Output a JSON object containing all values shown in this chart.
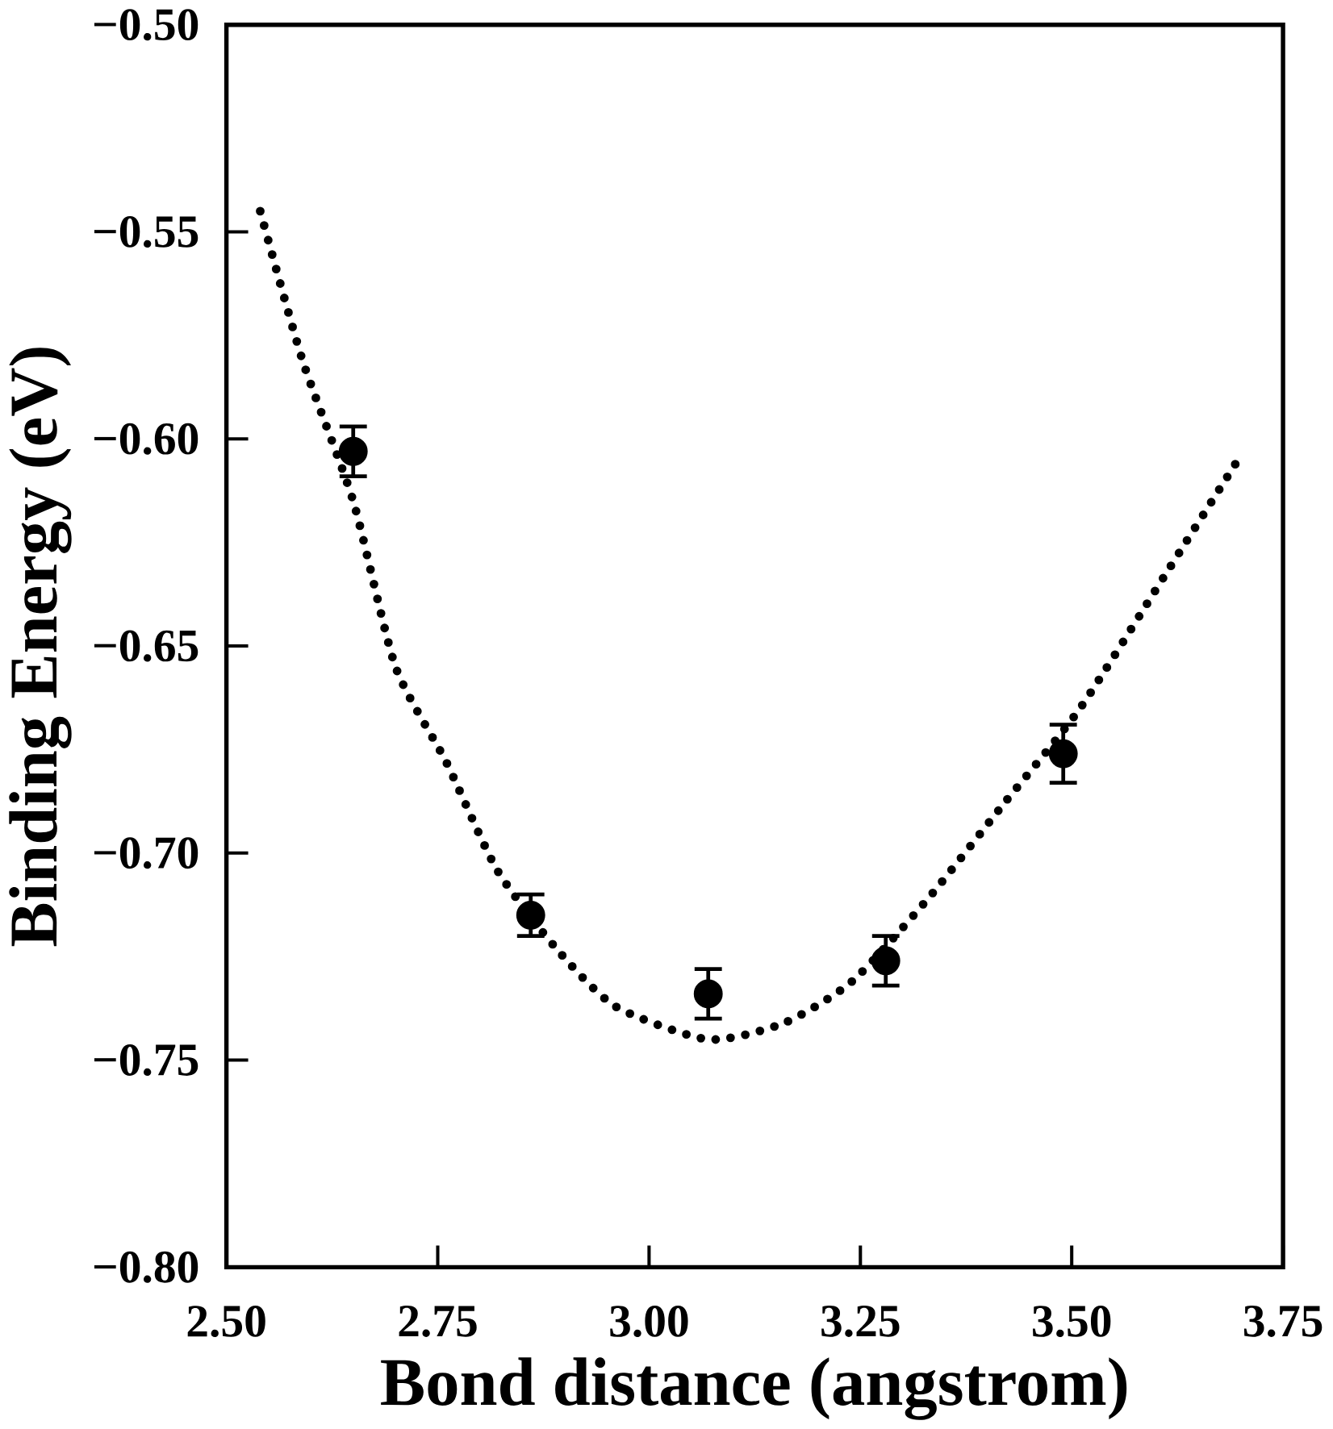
{
  "chart_data": {
    "type": "scatter",
    "xlabel": "Bond distance (angstrom)",
    "ylabel": "Binding Energy (eV)",
    "xlim": [
      2.5,
      3.75
    ],
    "ylim": [
      -0.8,
      -0.5
    ],
    "xticks": [
      {
        "value": 2.5,
        "label": "2.50"
      },
      {
        "value": 2.75,
        "label": "2.75"
      },
      {
        "value": 3.0,
        "label": "3.00"
      },
      {
        "value": 3.25,
        "label": "3.25"
      },
      {
        "value": 3.5,
        "label": "3.50"
      },
      {
        "value": 3.75,
        "label": "3.75"
      }
    ],
    "yticks": [
      {
        "value": -0.8,
        "label": "−0.80"
      },
      {
        "value": -0.75,
        "label": "−0.75"
      },
      {
        "value": -0.7,
        "label": "−0.70"
      },
      {
        "value": -0.65,
        "label": "−0.65"
      },
      {
        "value": -0.6,
        "label": "−0.60"
      },
      {
        "value": -0.55,
        "label": "−0.55"
      },
      {
        "value": -0.5,
        "label": "−0.50"
      }
    ],
    "grid": false,
    "series": [
      {
        "color": "#000000",
        "marker": "circle",
        "x": [
          2.65,
          2.86,
          3.07,
          3.28,
          3.49
        ],
        "values": [
          -0.603,
          -0.715,
          -0.734,
          -0.726,
          -0.676
        ],
        "errors": [
          0.006,
          0.005,
          0.006,
          0.006,
          0.007
        ]
      },
      {
        "type": "line",
        "color": "#000000",
        "line_style": "dotted",
        "marker": "none",
        "x": [
          2.54,
          2.59,
          2.65,
          2.7,
          2.76,
          2.82,
          2.89,
          2.96,
          3.07,
          3.16,
          3.24,
          3.33,
          3.42,
          3.51,
          3.61,
          3.7
        ],
        "values": [
          -0.545,
          -0.581,
          -0.615,
          -0.655,
          -0.678,
          -0.704,
          -0.723,
          -0.737,
          -0.745,
          -0.741,
          -0.731,
          -0.711,
          -0.688,
          -0.665,
          -0.633,
          -0.604
        ]
      }
    ]
  }
}
